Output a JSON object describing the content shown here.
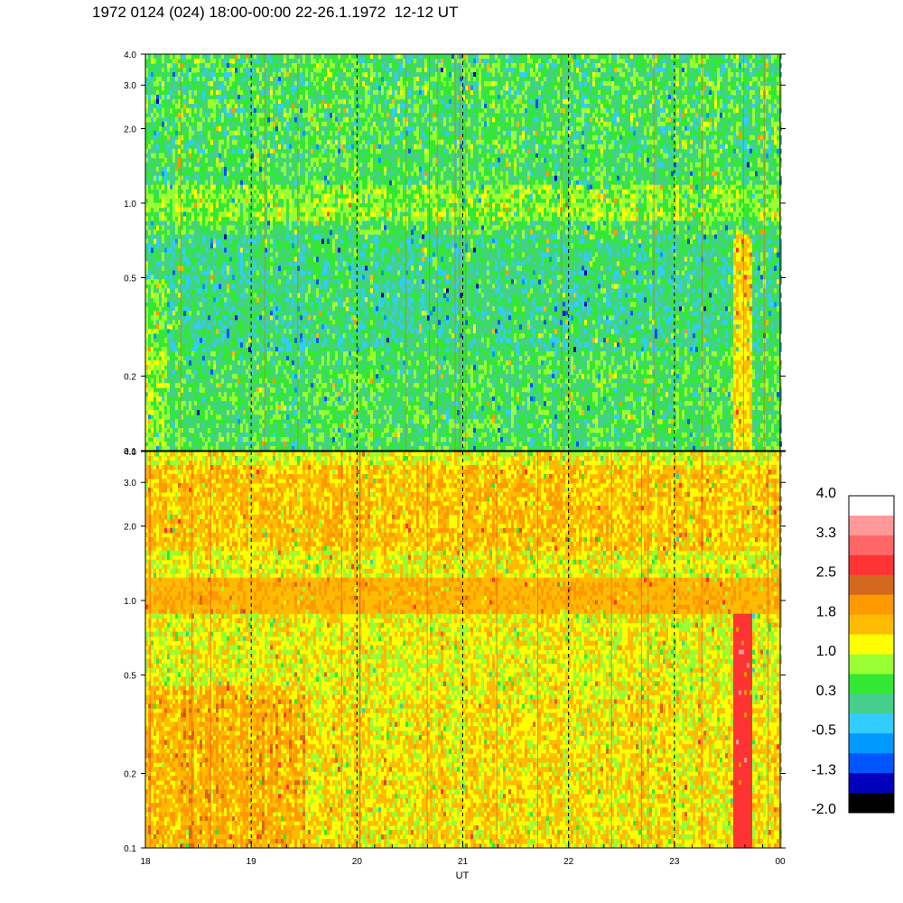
{
  "title": "1972 0124 (024) 18:00-00:00 22-26.1.1972  12-12 UT",
  "chart_data": {
    "type": "heatmap",
    "title": "1972 0124 (024) 18:00-00:00 22-26.1.1972  12-12 UT",
    "xlabel": "UT",
    "x_ticks": [
      "18",
      "19",
      "20",
      "21",
      "22",
      "23",
      "00"
    ],
    "x_range": [
      18,
      24
    ],
    "y_scale": "log",
    "y_range": [
      0.1,
      4.0
    ],
    "panels": [
      {
        "name": "upper",
        "y_ticks": [
          "4.0",
          "3.0",
          "2.0",
          "1.0",
          "0.5",
          "0.2",
          "0.1"
        ],
        "dominant_level": "0.3",
        "features": [
          {
            "kind": "band",
            "y": 1.0,
            "level": "1.0"
          },
          {
            "kind": "burst",
            "x": 23.65,
            "y_range": [
              0.1,
              0.7
            ],
            "level": "1.8"
          }
        ]
      },
      {
        "name": "lower",
        "y_ticks": [
          "4.0",
          "3.0",
          "2.0",
          "1.0",
          "0.5",
          "0.2",
          "0.1"
        ],
        "dominant_level": "1.0",
        "features": [
          {
            "kind": "band",
            "y": 1.0,
            "level": "1.8"
          },
          {
            "kind": "burst",
            "x": 23.65,
            "y_range": [
              0.1,
              0.9
            ],
            "level": "2.5"
          }
        ]
      }
    ],
    "colorbar": {
      "levels": [
        "4.0",
        "3.3",
        "2.5",
        "1.8",
        "1.0",
        "0.3",
        "-0.5",
        "-1.3",
        "-2.0"
      ],
      "colors": [
        "#ffffff",
        "#ff9999",
        "#ff6666",
        "#ff3333",
        "#d2691e",
        "#ff9900",
        "#ffbb00",
        "#ffff00",
        "#99ff33",
        "#33e833",
        "#44d08c",
        "#33ccff",
        "#0099ff",
        "#0055ff",
        "#0000bb",
        "#000000"
      ]
    }
  }
}
